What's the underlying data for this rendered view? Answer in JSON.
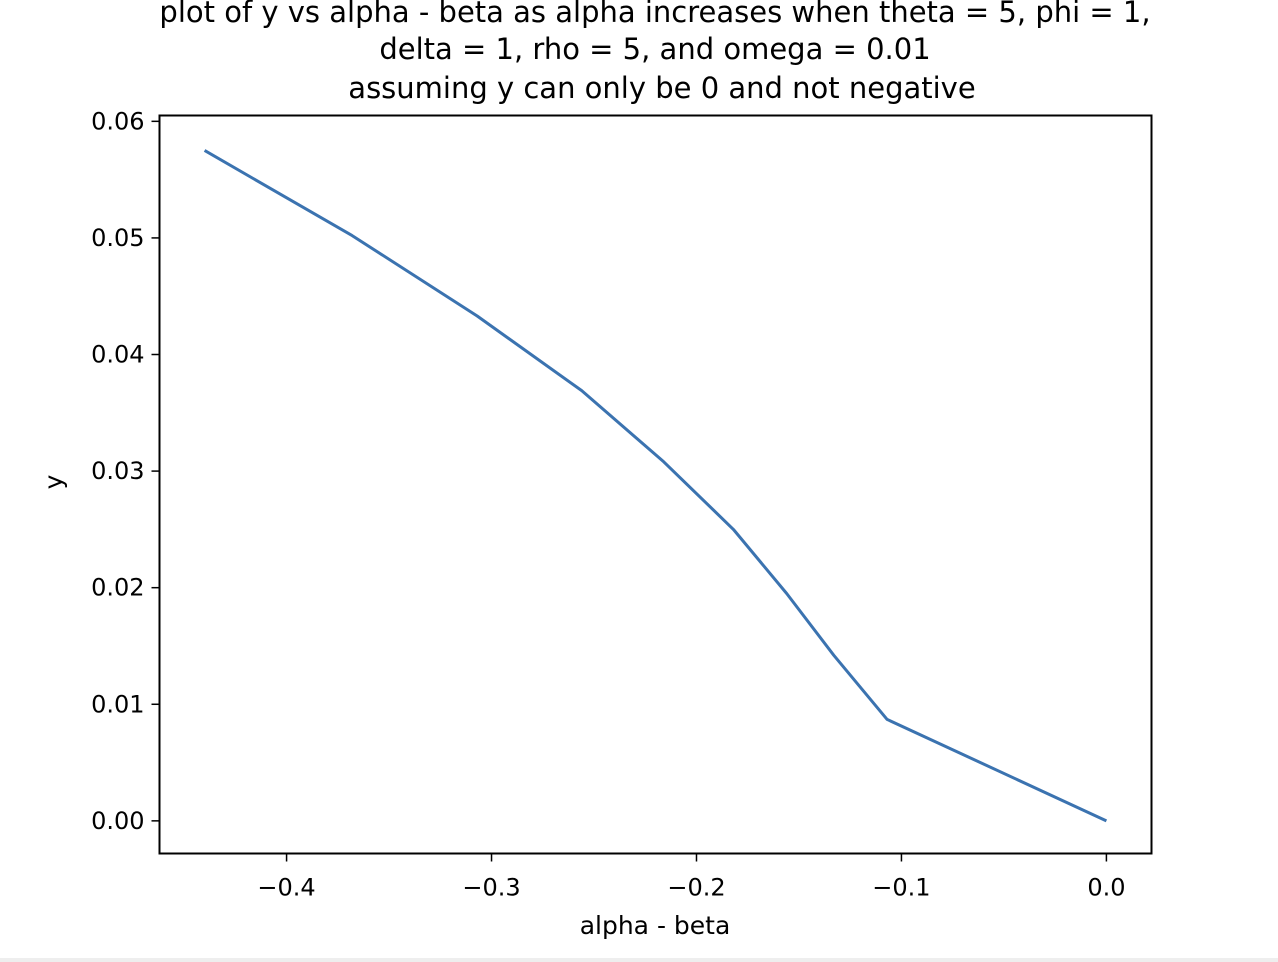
{
  "chart_data": {
    "type": "line",
    "title_lines": [
      "plot of y vs alpha - beta as alpha increases when theta = 5, phi = 1,",
      "delta = 1, rho = 5, and omega = 0.01",
      "assuming y can only be 0 and not negative"
    ],
    "xlabel": "alpha - beta",
    "ylabel": "y",
    "xlim": [
      -0.462,
      0.022
    ],
    "ylim": [
      -0.0028,
      0.0605
    ],
    "x_ticks": [
      -0.4,
      -0.3,
      -0.2,
      -0.1,
      0.0
    ],
    "x_tick_labels": [
      "−0.4",
      "−0.3",
      "−0.2",
      "−0.1",
      "0.0"
    ],
    "y_ticks": [
      0.0,
      0.01,
      0.02,
      0.03,
      0.04,
      0.05,
      0.06
    ],
    "y_tick_labels": [
      "0.00",
      "0.01",
      "0.02",
      "0.03",
      "0.04",
      "0.05",
      "0.06"
    ],
    "grid": false,
    "series": [
      {
        "color": "#3b73b0",
        "x": [
          -0.44,
          -0.368,
          -0.307,
          -0.256,
          -0.216,
          -0.182,
          -0.156,
          -0.133,
          -0.107,
          0.0
        ],
        "y": [
          0.0575,
          0.0502,
          0.0433,
          0.0369,
          0.0308,
          0.025,
          0.0195,
          0.0142,
          0.0087,
          0.0
        ]
      }
    ]
  }
}
